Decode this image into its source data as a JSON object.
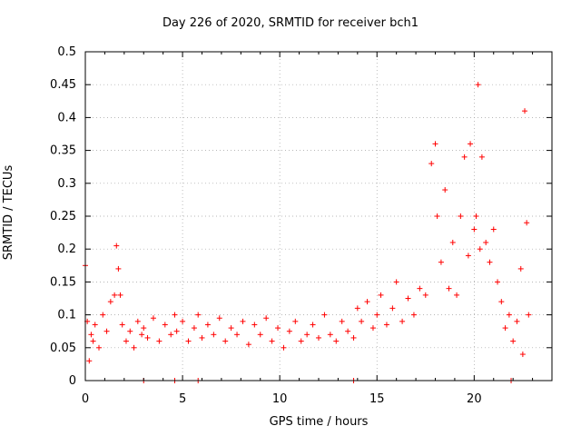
{
  "chart_data": {
    "type": "scatter",
    "title": "Day 226 of 2020, SRMTID for receiver bch1",
    "xlabel": "GPS time / hours",
    "ylabel": "SRMTID / TECUs",
    "xlim": [
      0,
      24
    ],
    "ylim": [
      0,
      0.5
    ],
    "x_ticks": [
      0,
      5,
      10,
      15,
      20
    ],
    "y_ticks": [
      0,
      0.05,
      0.1,
      0.15,
      0.2,
      0.25,
      0.3,
      0.35,
      0.4,
      0.45,
      0.5
    ],
    "grid": true,
    "marker": "+",
    "color": "#ff0000",
    "series": [
      {
        "name": "bch1",
        "x": [
          0.0,
          0.1,
          0.2,
          0.3,
          0.4,
          0.5,
          0.7,
          0.9,
          1.1,
          1.3,
          1.5,
          1.6,
          1.7,
          1.8,
          1.9,
          2.1,
          2.3,
          2.5,
          2.7,
          2.9,
          3.0,
          3.2,
          3.5,
          3.8,
          4.1,
          4.4,
          4.6,
          4.7,
          5.0,
          5.3,
          5.6,
          5.8,
          6.0,
          6.3,
          6.6,
          6.9,
          7.2,
          7.5,
          7.8,
          8.1,
          8.4,
          8.7,
          9.0,
          9.3,
          9.6,
          9.9,
          10.2,
          10.5,
          10.8,
          11.1,
          11.4,
          11.7,
          12.0,
          12.3,
          12.6,
          12.9,
          13.2,
          13.5,
          13.8,
          14.0,
          14.2,
          14.5,
          14.8,
          15.0,
          15.2,
          15.5,
          15.8,
          16.0,
          16.3,
          16.6,
          16.9,
          17.2,
          17.5,
          17.8,
          18.0,
          18.1,
          18.3,
          18.5,
          18.7,
          18.9,
          19.1,
          19.3,
          19.5,
          19.7,
          19.8,
          20.0,
          20.1,
          20.2,
          20.3,
          20.4,
          20.6,
          20.8,
          21.0,
          21.2,
          21.4,
          21.6,
          21.8,
          22.0,
          22.2,
          22.4,
          22.5,
          22.6,
          22.7,
          22.8
        ],
        "y": [
          0.175,
          0.09,
          0.03,
          0.07,
          0.06,
          0.085,
          0.05,
          0.1,
          0.075,
          0.12,
          0.13,
          0.205,
          0.17,
          0.13,
          0.085,
          0.06,
          0.075,
          0.05,
          0.09,
          0.07,
          0.08,
          0.065,
          0.095,
          0.06,
          0.085,
          0.07,
          0.1,
          0.075,
          0.09,
          0.06,
          0.08,
          0.1,
          0.065,
          0.085,
          0.07,
          0.095,
          0.06,
          0.08,
          0.07,
          0.09,
          0.055,
          0.085,
          0.07,
          0.095,
          0.06,
          0.08,
          0.05,
          0.075,
          0.09,
          0.06,
          0.07,
          0.085,
          0.065,
          0.1,
          0.07,
          0.06,
          0.09,
          0.075,
          0.065,
          0.11,
          0.09,
          0.12,
          0.08,
          0.1,
          0.13,
          0.085,
          0.11,
          0.15,
          0.09,
          0.125,
          0.1,
          0.14,
          0.13,
          0.33,
          0.36,
          0.25,
          0.18,
          0.29,
          0.14,
          0.21,
          0.13,
          0.25,
          0.34,
          0.19,
          0.36,
          0.23,
          0.25,
          0.45,
          0.2,
          0.34,
          0.21,
          0.18,
          0.23,
          0.15,
          0.12,
          0.08,
          0.1,
          0.06,
          0.09,
          0.17,
          0.04,
          0.41,
          0.24,
          0.1
        ],
        "markers_on_zero": [
          3.0,
          4.6,
          5.8,
          13.8,
          21.9
        ]
      }
    ]
  }
}
